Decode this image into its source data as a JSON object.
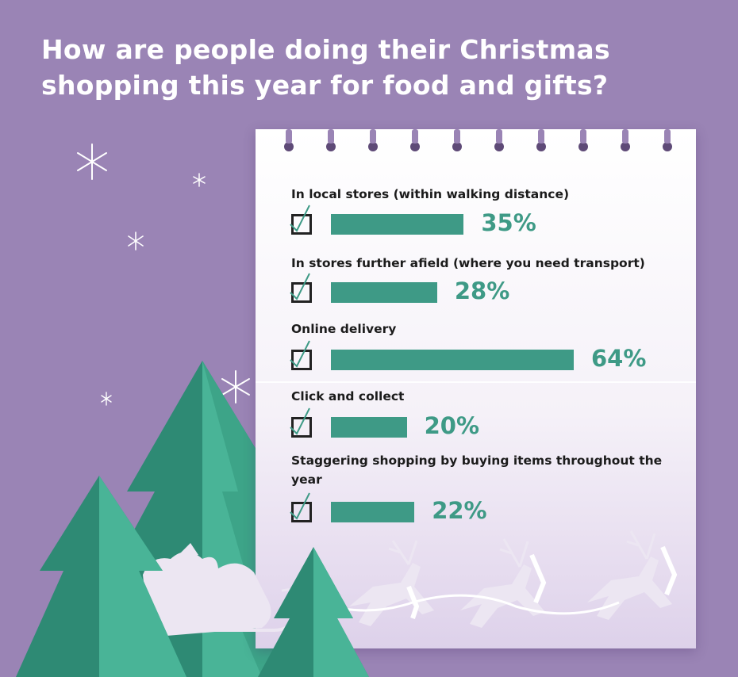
{
  "title_line1": "How are people doing their Christmas",
  "title_line2": "shopping this year for food and gifts?",
  "colors": {
    "background": "#9a84b5",
    "bar": "#3e9a86",
    "tree_dark": "#2e8a74",
    "tree_light": "#49b497"
  },
  "icons": [
    "sparkle-icon",
    "checkbox-icon",
    "checkmark-icon",
    "christmas-tree-icon",
    "santa-sleigh-icon",
    "reindeer-icon"
  ],
  "chart_data": {
    "type": "bar",
    "orientation": "horizontal",
    "title": "How are people doing their Christmas shopping this year for food and gifts?",
    "categories": [
      "In local stores (within walking distance)",
      "In stores further afield (where you need transport)",
      "Online delivery",
      "Click and collect",
      "Staggering shopping by buying items throughout the year"
    ],
    "values": [
      35,
      28,
      64,
      20,
      22
    ],
    "value_labels": [
      "35%",
      "28%",
      "64%",
      "20%",
      "22%"
    ],
    "xlim": [
      0,
      64
    ],
    "unit": "%"
  }
}
